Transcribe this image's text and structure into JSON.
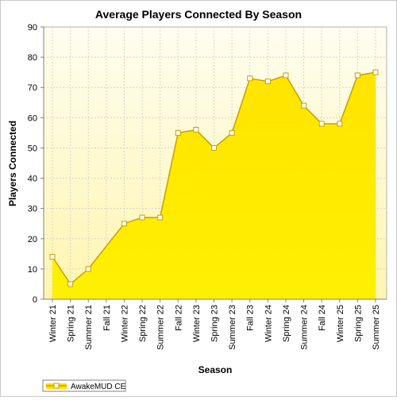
{
  "chart_data": {
    "type": "area",
    "title": "Average Players Connected By Season",
    "xlabel": "Season",
    "ylabel": "Players Connected",
    "ylim": [
      0,
      90
    ],
    "yticks": [
      0,
      10,
      20,
      30,
      40,
      50,
      60,
      70,
      80,
      90
    ],
    "grid": true,
    "legend_position": "bottom-left",
    "categories": [
      "Winter 21",
      "Spring 21",
      "Summer 21",
      "Fall 21",
      "Winter 22",
      "Spring 22",
      "Summer 22",
      "Fall 22",
      "Winter 23",
      "Spring 23",
      "Summer 23",
      "Fall 23",
      "Winter 24",
      "Spring 24",
      "Summer 24",
      "Fall 24",
      "Winter 25",
      "Spring 25",
      "Summer 25"
    ],
    "series": [
      {
        "name": "AwakeMUD CE",
        "values": [
          14,
          5,
          10,
          null,
          25,
          27,
          27,
          55,
          56,
          50,
          55,
          73,
          72,
          74,
          64,
          58,
          58,
          74,
          75
        ]
      }
    ],
    "colors": {
      "fill": "#ffe000",
      "line": "#c8a000",
      "plot_bg": "#fffbd8",
      "grid": "#d8d8c8"
    }
  }
}
